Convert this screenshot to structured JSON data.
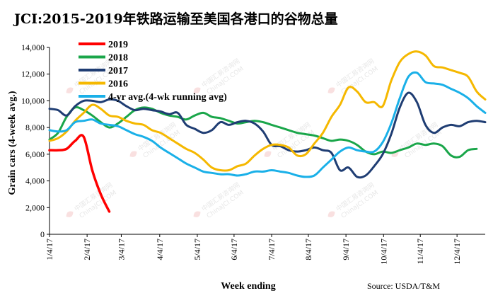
{
  "chart_data": {
    "type": "line",
    "title": "JCI:2015-2019年铁路运输至美国各港口的谷物总量",
    "xlabel": "Week ending",
    "ylabel": "Grain cars (4-week avg.)",
    "source": "Source: USDA/T&M",
    "ylim": [
      0,
      14000
    ],
    "yticks": [
      0,
      2000,
      4000,
      6000,
      8000,
      10000,
      12000,
      14000
    ],
    "ytick_labels": [
      "0",
      "2,000",
      "4,000",
      "6,000",
      "8,000",
      "10,000",
      "12,000",
      "14,000"
    ],
    "xlim": [
      0,
      51
    ],
    "xticks": [
      0,
      4.4,
      8.4,
      12.9,
      17.3,
      21.6,
      26,
      30.3,
      34.7,
      39.1,
      43.4,
      47.7
    ],
    "xtick_labels": [
      "1/4/17",
      "2/4/17",
      "3/4/17",
      "4/4/17",
      "5/4/17",
      "6/4/17",
      "7/4/17",
      "8/4/17",
      "9/4/17",
      "10/4/17",
      "11/4/17",
      "12/4/17"
    ],
    "legend_position": "top-left",
    "series": [
      {
        "name": "2019",
        "color": "#ff0000",
        "x": [
          0,
          1,
          2,
          3,
          4,
          5,
          6,
          7
        ],
        "values": [
          6300,
          6300,
          6400,
          7000,
          7300,
          4800,
          3000,
          1700
        ]
      },
      {
        "name": "2018",
        "color": "#1aa64a",
        "x": [
          0,
          1,
          2,
          3,
          4,
          5,
          6,
          7,
          8,
          9,
          10,
          11,
          12,
          13,
          14,
          15,
          16,
          17,
          18,
          19,
          20,
          21,
          22,
          23,
          24,
          25,
          26,
          27,
          28,
          29,
          30,
          31,
          32,
          33,
          34,
          35,
          36,
          37,
          38,
          39,
          40,
          41,
          42,
          43,
          44,
          45,
          46,
          47,
          48,
          49,
          50
        ],
        "values": [
          7100,
          7600,
          8800,
          9500,
          9300,
          8900,
          8400,
          8000,
          8300,
          8800,
          9300,
          9500,
          9400,
          9100,
          8900,
          8800,
          8600,
          8900,
          9100,
          8800,
          8700,
          8500,
          8300,
          8400,
          8500,
          8400,
          8200,
          8000,
          7800,
          7600,
          7500,
          7400,
          7200,
          7000,
          7100,
          7000,
          6700,
          6200,
          6000,
          6200,
          6100,
          6300,
          6500,
          6800,
          6700,
          6800,
          6600,
          5900,
          5800,
          6300,
          6400
        ]
      },
      {
        "name": "2017",
        "color": "#1f3d73",
        "x": [
          0,
          1,
          2,
          3,
          4,
          5,
          6,
          7,
          8,
          9,
          10,
          11,
          12,
          13,
          14,
          15,
          16,
          17,
          18,
          19,
          20,
          21,
          22,
          23,
          24,
          25,
          26,
          27,
          28,
          29,
          30,
          31,
          32,
          33,
          34,
          35,
          36,
          37,
          38,
          39,
          40,
          41,
          42,
          43,
          44,
          45,
          46,
          47,
          48,
          49,
          50,
          51
        ],
        "values": [
          9400,
          9300,
          8900,
          9600,
          10000,
          10000,
          9900,
          10100,
          10000,
          9600,
          9300,
          9400,
          9300,
          9200,
          9000,
          9100,
          8200,
          7900,
          7600,
          7800,
          8400,
          8200,
          8400,
          8500,
          8300,
          7700,
          6700,
          6600,
          6300,
          6200,
          6300,
          6500,
          6300,
          6100,
          4800,
          5000,
          4300,
          4400,
          5100,
          6000,
          7500,
          9500,
          10600,
          9900,
          8200,
          7600,
          8000,
          8200,
          8100,
          8400,
          8500,
          8400
        ]
      },
      {
        "name": "2016",
        "color": "#f5b800",
        "x": [
          0,
          1,
          2,
          3,
          4,
          5,
          6,
          7,
          8,
          9,
          10,
          11,
          12,
          13,
          14,
          15,
          16,
          17,
          18,
          19,
          20,
          21,
          22,
          23,
          24,
          25,
          26,
          27,
          28,
          29,
          30,
          31,
          32,
          33,
          34,
          35,
          36,
          37,
          38,
          39,
          40,
          41,
          42,
          43,
          44,
          45,
          46,
          47,
          48,
          49,
          50,
          51
        ],
        "values": [
          7000,
          7200,
          7700,
          8500,
          9100,
          9700,
          9400,
          8900,
          8800,
          8500,
          8300,
          8200,
          7800,
          7600,
          7200,
          6800,
          6400,
          6100,
          5600,
          5000,
          4800,
          4800,
          5100,
          5300,
          5900,
          6400,
          6700,
          6700,
          6500,
          5900,
          6000,
          6800,
          7600,
          8800,
          9700,
          11000,
          10700,
          9900,
          9900,
          9600,
          11500,
          12900,
          13500,
          13700,
          13400,
          12600,
          12500,
          12300,
          12100,
          11800,
          10700,
          10100
        ]
      },
      {
        "name": "4-yr avg.(4-wk running avg)",
        "color": "#1ab0e8",
        "x": [
          0,
          1,
          2,
          3,
          4,
          5,
          6,
          7,
          8,
          9,
          10,
          11,
          12,
          13,
          14,
          15,
          16,
          17,
          18,
          19,
          20,
          21,
          22,
          23,
          24,
          25,
          26,
          27,
          28,
          29,
          30,
          31,
          32,
          33,
          34,
          35,
          36,
          37,
          38,
          39,
          40,
          41,
          42,
          43,
          44,
          45,
          46,
          47,
          48,
          49,
          50,
          51
        ],
        "values": [
          7800,
          7700,
          7800,
          8400,
          8500,
          8600,
          8300,
          8200,
          8100,
          7800,
          7500,
          7300,
          7000,
          6500,
          6100,
          5700,
          5300,
          5000,
          4700,
          4600,
          4500,
          4500,
          4400,
          4500,
          4700,
          4700,
          4800,
          4700,
          4600,
          4400,
          4300,
          4400,
          5000,
          5600,
          6200,
          6500,
          6300,
          6200,
          6200,
          6900,
          8300,
          10200,
          11800,
          12100,
          11400,
          11300,
          11200,
          10900,
          10600,
          10200,
          9600,
          9100
        ]
      }
    ]
  },
  "watermark": {
    "lines": [
      "中国汇易咨询网",
      "ChinaJCI.COM"
    ]
  }
}
